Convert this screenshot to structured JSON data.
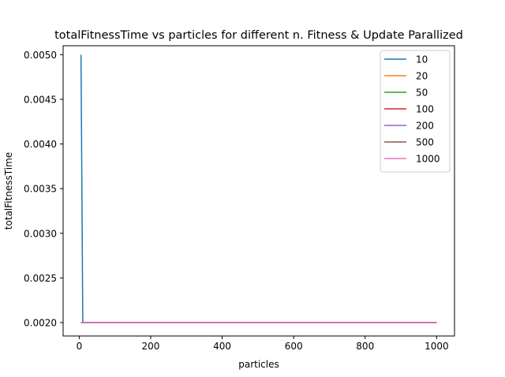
{
  "chart_data": {
    "type": "line",
    "title": "totalFitnessTime vs particles for different n. Fitness & Update Parallized",
    "xlabel": "particles",
    "ylabel": "totalFitnessTime",
    "xlim": [
      -45,
      1050
    ],
    "ylim": [
      0.00185,
      0.0051
    ],
    "xticks": [
      0,
      200,
      400,
      600,
      800,
      1000
    ],
    "yticks": [
      0.002,
      0.0025,
      0.003,
      0.0035,
      0.004,
      0.0045,
      0.005
    ],
    "ytick_labels": [
      "0.0020",
      "0.0025",
      "0.0030",
      "0.0035",
      "0.0040",
      "0.0045",
      "0.0050"
    ],
    "grid": false,
    "legend_position": "top-right",
    "series": [
      {
        "name": "10",
        "color": "#1f77b4",
        "x": [
          5,
          10,
          20,
          50,
          100,
          200,
          500,
          1000
        ],
        "y": [
          0.005,
          0.002,
          0.002,
          0.002,
          0.002,
          0.002,
          0.002,
          0.002
        ]
      },
      {
        "name": "20",
        "color": "#ff7f0e",
        "x": [
          5,
          10,
          20,
          50,
          100,
          200,
          500,
          1000
        ],
        "y": [
          0.002,
          0.002,
          0.002,
          0.002,
          0.002,
          0.002,
          0.002,
          0.002
        ]
      },
      {
        "name": "50",
        "color": "#2ca02c",
        "x": [
          5,
          10,
          20,
          50,
          100,
          200,
          500,
          1000
        ],
        "y": [
          0.002,
          0.002,
          0.002,
          0.002,
          0.002,
          0.002,
          0.002,
          0.002
        ]
      },
      {
        "name": "100",
        "color": "#d62728",
        "x": [
          5,
          10,
          20,
          50,
          100,
          200,
          500,
          1000
        ],
        "y": [
          0.002,
          0.002,
          0.002,
          0.002,
          0.002,
          0.002,
          0.002,
          0.002
        ]
      },
      {
        "name": "200",
        "color": "#9467bd",
        "x": [
          5,
          10,
          20,
          50,
          100,
          200,
          500,
          1000
        ],
        "y": [
          0.002,
          0.002,
          0.002,
          0.002,
          0.002,
          0.002,
          0.002,
          0.002
        ]
      },
      {
        "name": "500",
        "color": "#8c564b",
        "x": [
          5,
          10,
          20,
          50,
          100,
          200,
          500,
          1000
        ],
        "y": [
          0.002,
          0.002,
          0.002,
          0.002,
          0.002,
          0.002,
          0.002,
          0.002
        ]
      },
      {
        "name": "1000",
        "color": "#e377c2",
        "x": [
          5,
          10,
          20,
          50,
          100,
          200,
          500,
          1000
        ],
        "y": [
          0.002,
          0.002,
          0.002,
          0.002,
          0.002,
          0.002,
          0.002,
          0.002
        ]
      }
    ]
  }
}
